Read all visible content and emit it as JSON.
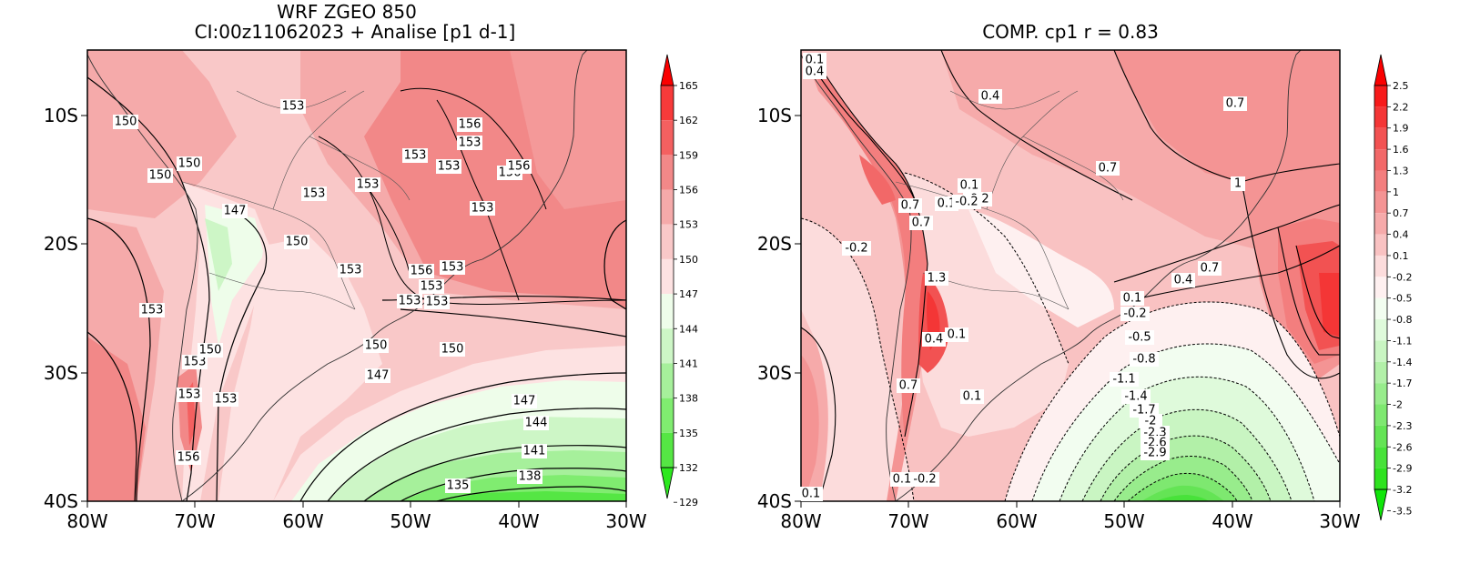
{
  "panels": [
    {
      "id": "left",
      "title_lines": [
        "WRF ZGEO 850",
        "CI:00z11062023 + Analise  [p1 d-1]"
      ],
      "x_ticks": [
        "80W",
        "70W",
        "60W",
        "50W",
        "40W",
        "30W"
      ],
      "y_ticks": [
        "10S",
        "20S",
        "30S",
        "40S"
      ],
      "colorbar": {
        "labels": [
          "165",
          "162",
          "159",
          "156",
          "153",
          "150",
          "147",
          "144",
          "141",
          "138",
          "135",
          "132",
          "129"
        ],
        "colors": [
          "#fa0000",
          "#f73a3a",
          "#f46060",
          "#f28888",
          "#f5aaaa",
          "#f9c8c8",
          "#fde2e2",
          "#eefdea",
          "#cdf6c6",
          "#a6f09b",
          "#80ec70",
          "#55e644",
          "#2ce81e"
        ]
      },
      "contour_labels": [
        "153",
        "150",
        "150",
        "150",
        "147",
        "153",
        "153",
        "153",
        "153",
        "153",
        "156",
        "153",
        "156",
        "156",
        "153",
        "153",
        "150",
        "153",
        "156",
        "153",
        "153",
        "153",
        "150",
        "153",
        "153",
        "150",
        "153",
        "156",
        "147",
        "150",
        "147",
        "144",
        "141",
        "138",
        "135"
      ]
    },
    {
      "id": "right",
      "title_lines": [
        "COMP. cp1   r =  0.83"
      ],
      "x_ticks": [
        "80W",
        "70W",
        "60W",
        "50W",
        "40W",
        "30W"
      ],
      "y_ticks": [
        "10S",
        "20S",
        "30S",
        "40S"
      ],
      "colorbar": {
        "labels": [
          "2.5",
          "2.2",
          "1.9",
          "1.6",
          "1.3",
          "1",
          "0.7",
          "0.4",
          "0.1",
          "-0.2",
          "-0.5",
          "-0.8",
          "-1.1",
          "-1.4",
          "-1.7",
          "-2",
          "-2.3",
          "-2.6",
          "-2.9",
          "-3.2",
          "-3.5"
        ],
        "colors": [
          "#fa0000",
          "#f71a1a",
          "#f43636",
          "#f25252",
          "#f26868",
          "#f37e7e",
          "#f49494",
          "#f6aaaa",
          "#f9c2c2",
          "#fcdcdc",
          "#fef0f0",
          "#f2fdf0",
          "#dffadb",
          "#c9f5c2",
          "#b2f0a8",
          "#98ec8c",
          "#7ee870",
          "#64e455",
          "#48e23a",
          "#2ee21f",
          "#10e60a"
        ]
      },
      "contour_labels": [
        "0.1",
        "0.4",
        "0.4",
        "0.7",
        "0.7",
        "1",
        "0.1",
        "-0.2",
        "0.7",
        "0.7",
        "0.1",
        "-0.2",
        "-0.2",
        "1.3",
        "0.4",
        "0.1",
        "0.4",
        "0.1",
        "0.7",
        "0.1",
        "0.1",
        "-0.2",
        "-0.5",
        "-0.8",
        "-1.1",
        "-1.4",
        "-1.7",
        "-2",
        "-2.3",
        "-2.6",
        "-2.9",
        "0.7",
        "0.1",
        "-0.2"
      ]
    }
  ]
}
